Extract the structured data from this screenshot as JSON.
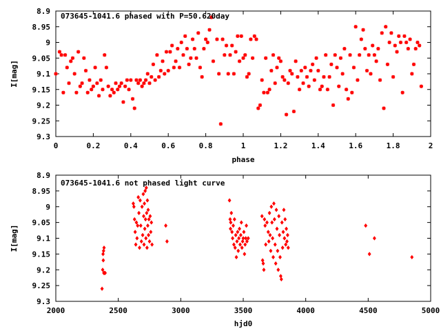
{
  "chart_data": [
    {
      "type": "scatter",
      "title": "073645-1041.6 phased with P=50.620day",
      "xlabel": "phase",
      "ylabel": "I[mag]",
      "xlim": [
        0,
        2
      ],
      "ylim": [
        9.3,
        8.9
      ],
      "y_inverted": true,
      "x_ticks": [
        "0",
        "0.2",
        "0.4",
        "0.6",
        "0.8",
        "1",
        "1.2",
        "1.4",
        "1.6",
        "1.8",
        "2"
      ],
      "y_ticks": [
        "8.9",
        "8.95",
        "9",
        "9.05",
        "9.1",
        "9.15",
        "9.2",
        "9.25",
        "9.3"
      ],
      "marker": "plus-cross",
      "color": "#ff0000",
      "points": [
        [
          0.0,
          9.1
        ],
        [
          0.02,
          9.03
        ],
        [
          0.03,
          9.04
        ],
        [
          0.04,
          9.16
        ],
        [
          0.05,
          9.04
        ],
        [
          0.06,
          9.08
        ],
        [
          0.07,
          9.13
        ],
        [
          0.08,
          9.06
        ],
        [
          0.09,
          9.05
        ],
        [
          0.1,
          9.1
        ],
        [
          0.11,
          9.16
        ],
        [
          0.12,
          9.03
        ],
        [
          0.13,
          9.14
        ],
        [
          0.14,
          9.13
        ],
        [
          0.15,
          9.05
        ],
        [
          0.16,
          9.09
        ],
        [
          0.17,
          9.16
        ],
        [
          0.18,
          9.12
        ],
        [
          0.19,
          9.15
        ],
        [
          0.2,
          9.14
        ],
        [
          0.21,
          9.08
        ],
        [
          0.22,
          9.13
        ],
        [
          0.23,
          9.17
        ],
        [
          0.24,
          9.12
        ],
        [
          0.25,
          9.15
        ],
        [
          0.26,
          9.04
        ],
        [
          0.27,
          9.08
        ],
        [
          0.28,
          9.14
        ],
        [
          0.29,
          9.17
        ],
        [
          0.3,
          9.15
        ],
        [
          0.31,
          9.16
        ],
        [
          0.32,
          9.13
        ],
        [
          0.33,
          9.15
        ],
        [
          0.34,
          9.14
        ],
        [
          0.35,
          9.13
        ],
        [
          0.36,
          9.19
        ],
        [
          0.37,
          9.14
        ],
        [
          0.38,
          9.12
        ],
        [
          0.39,
          9.15
        ],
        [
          0.4,
          9.12
        ],
        [
          0.41,
          9.18
        ],
        [
          0.42,
          9.21
        ],
        [
          0.43,
          9.12
        ],
        [
          0.44,
          9.13
        ],
        [
          0.45,
          9.12
        ],
        [
          0.46,
          9.14
        ],
        [
          0.47,
          9.13
        ],
        [
          0.48,
          9.12
        ],
        [
          0.49,
          9.1
        ],
        [
          0.5,
          9.13
        ],
        [
          0.51,
          9.11
        ],
        [
          0.52,
          9.07
        ],
        [
          0.53,
          9.12
        ],
        [
          0.54,
          9.04
        ],
        [
          0.55,
          9.11
        ],
        [
          0.56,
          9.09
        ],
        [
          0.57,
          9.06
        ],
        [
          0.58,
          9.1
        ],
        [
          0.59,
          9.03
        ],
        [
          0.6,
          9.09
        ],
        [
          0.61,
          9.03
        ],
        [
          0.62,
          9.01
        ],
        [
          0.63,
          9.08
        ],
        [
          0.64,
          9.06
        ],
        [
          0.65,
          9.02
        ],
        [
          0.66,
          9.08
        ],
        [
          0.67,
          9.0
        ],
        [
          0.68,
          9.04
        ],
        [
          0.69,
          8.98
        ],
        [
          0.7,
          9.02
        ],
        [
          0.71,
          9.07
        ],
        [
          0.72,
          9.05
        ],
        [
          0.73,
          8.99
        ],
        [
          0.74,
          9.02
        ],
        [
          0.75,
          9.05
        ],
        [
          0.76,
          8.97
        ],
        [
          0.77,
          9.08
        ],
        [
          0.78,
          9.11
        ],
        [
          0.79,
          9.02
        ],
        [
          0.8,
          8.99
        ],
        [
          0.81,
          9.0
        ],
        [
          0.82,
          8.96
        ],
        [
          0.83,
          8.92
        ],
        [
          0.84,
          9.06
        ],
        [
          0.86,
          8.99
        ],
        [
          0.87,
          9.1
        ],
        [
          0.88,
          9.26
        ],
        [
          0.89,
          8.99
        ],
        [
          0.9,
          9.04
        ],
        [
          0.91,
          9.01
        ],
        [
          0.92,
          9.1
        ],
        [
          0.93,
          9.04
        ],
        [
          0.94,
          9.01
        ],
        [
          0.95,
          9.1
        ],
        [
          0.96,
          9.03
        ],
        [
          0.97,
          8.98
        ],
        [
          0.98,
          9.06
        ],
        [
          0.99,
          8.98
        ],
        [
          1.0,
          9.05
        ],
        [
          1.01,
          9.04
        ],
        [
          1.02,
          9.11
        ],
        [
          1.03,
          9.1
        ],
        [
          1.04,
          8.99
        ],
        [
          1.05,
          9.05
        ],
        [
          1.06,
          8.98
        ],
        [
          1.07,
          8.99
        ],
        [
          1.08,
          9.21
        ],
        [
          1.09,
          9.2
        ],
        [
          1.1,
          9.12
        ],
        [
          1.11,
          9.16
        ],
        [
          1.12,
          9.05
        ],
        [
          1.13,
          9.16
        ],
        [
          1.14,
          9.15
        ],
        [
          1.15,
          9.09
        ],
        [
          1.16,
          9.04
        ],
        [
          1.17,
          9.13
        ],
        [
          1.18,
          9.08
        ],
        [
          1.19,
          9.05
        ],
        [
          1.2,
          9.06
        ],
        [
          1.21,
          9.11
        ],
        [
          1.22,
          9.12
        ],
        [
          1.23,
          9.23
        ],
        [
          1.24,
          9.13
        ],
        [
          1.25,
          9.09
        ],
        [
          1.26,
          9.1
        ],
        [
          1.27,
          9.22
        ],
        [
          1.28,
          9.06
        ],
        [
          1.29,
          9.11
        ],
        [
          1.3,
          9.15
        ],
        [
          1.31,
          9.09
        ],
        [
          1.32,
          9.13
        ],
        [
          1.33,
          9.08
        ],
        [
          1.34,
          9.11
        ],
        [
          1.35,
          9.14
        ],
        [
          1.36,
          9.09
        ],
        [
          1.37,
          9.07
        ],
        [
          1.38,
          9.12
        ],
        [
          1.39,
          9.05
        ],
        [
          1.4,
          9.09
        ],
        [
          1.41,
          9.15
        ],
        [
          1.42,
          9.14
        ],
        [
          1.43,
          9.11
        ],
        [
          1.44,
          9.04
        ],
        [
          1.45,
          9.15
        ],
        [
          1.46,
          9.11
        ],
        [
          1.47,
          9.07
        ],
        [
          1.48,
          9.2
        ],
        [
          1.49,
          9.04
        ],
        [
          1.5,
          9.08
        ],
        [
          1.51,
          9.14
        ],
        [
          1.52,
          9.05
        ],
        [
          1.53,
          9.1
        ],
        [
          1.54,
          9.02
        ],
        [
          1.55,
          9.15
        ],
        [
          1.56,
          9.18
        ],
        [
          1.57,
          9.04
        ],
        [
          1.58,
          9.16
        ],
        [
          1.59,
          9.08
        ],
        [
          1.6,
          8.95
        ],
        [
          1.61,
          9.12
        ],
        [
          1.62,
          9.04
        ],
        [
          1.63,
          8.99
        ],
        [
          1.64,
          8.96
        ],
        [
          1.65,
          9.02
        ],
        [
          1.66,
          9.09
        ],
        [
          1.67,
          9.04
        ],
        [
          1.68,
          9.1
        ],
        [
          1.69,
          9.01
        ],
        [
          1.7,
          9.04
        ],
        [
          1.71,
          9.06
        ],
        [
          1.72,
          9.02
        ],
        [
          1.73,
          9.12
        ],
        [
          1.74,
          8.97
        ],
        [
          1.75,
          9.21
        ],
        [
          1.76,
          8.95
        ],
        [
          1.77,
          9.07
        ],
        [
          1.78,
          9.0
        ],
        [
          1.79,
          8.97
        ],
        [
          1.8,
          9.11
        ],
        [
          1.81,
          9.01
        ],
        [
          1.82,
          9.03
        ],
        [
          1.83,
          8.98
        ],
        [
          1.84,
          9.0
        ],
        [
          1.85,
          9.16
        ],
        [
          1.86,
          8.98
        ],
        [
          1.87,
          9.0
        ],
        [
          1.88,
          9.02
        ],
        [
          1.89,
          8.99
        ],
        [
          1.9,
          9.1
        ],
        [
          1.91,
          9.07
        ],
        [
          1.92,
          9.02
        ],
        [
          1.93,
          9.0
        ],
        [
          1.94,
          9.01
        ],
        [
          1.95,
          9.14
        ]
      ]
    },
    {
      "type": "scatter",
      "title": "073645-1041.6 not phased light curve",
      "xlabel": "hjd0",
      "ylabel": "I[mag]",
      "xlim": [
        2000,
        5000
      ],
      "ylim": [
        9.3,
        8.9
      ],
      "y_inverted": true,
      "x_ticks": [
        "2000",
        "2500",
        "3000",
        "3500",
        "4000",
        "4500",
        "5000"
      ],
      "y_ticks": [
        "8.9",
        "8.95",
        "9",
        "9.05",
        "9.1",
        "9.15",
        "9.2",
        "9.25",
        "9.3"
      ],
      "marker": "diamond",
      "color": "#ff0000",
      "points": [
        [
          2370,
          9.26
        ],
        [
          2375,
          9.2
        ],
        [
          2378,
          9.15
        ],
        [
          2380,
          9.17
        ],
        [
          2382,
          9.14
        ],
        [
          2384,
          9.21
        ],
        [
          2386,
          9.13
        ],
        [
          2388,
          9.21
        ],
        [
          2395,
          9.21
        ],
        [
          2620,
          8.99
        ],
        [
          2625,
          9.0
        ],
        [
          2630,
          9.04
        ],
        [
          2635,
          9.08
        ],
        [
          2640,
          9.12
        ],
        [
          2645,
          9.05
        ],
        [
          2650,
          9.1
        ],
        [
          2655,
          9.06
        ],
        [
          2660,
          8.97
        ],
        [
          2665,
          9.02
        ],
        [
          2670,
          9.13
        ],
        [
          2675,
          8.98
        ],
        [
          2680,
          9.06
        ],
        [
          2685,
          9.11
        ],
        [
          2690,
          9.0
        ],
        [
          2695,
          9.09
        ],
        [
          2700,
          8.96
        ],
        [
          2703,
          9.03
        ],
        [
          2706,
          9.12
        ],
        [
          2709,
          8.99
        ],
        [
          2712,
          9.07
        ],
        [
          2715,
          8.95
        ],
        [
          2718,
          9.04
        ],
        [
          2721,
          9.1
        ],
        [
          2724,
          8.94
        ],
        [
          2727,
          9.02
        ],
        [
          2730,
          9.13
        ],
        [
          2733,
          8.98
        ],
        [
          2736,
          9.06
        ],
        [
          2739,
          9.01
        ],
        [
          2742,
          9.09
        ],
        [
          2745,
          9.04
        ],
        [
          2750,
          9.11
        ],
        [
          2755,
          9.03
        ],
        [
          2760,
          9.08
        ],
        [
          2765,
          9.05
        ],
        [
          2770,
          9.12
        ],
        [
          2880,
          9.06
        ],
        [
          2890,
          9.11
        ],
        [
          3390,
          8.98
        ],
        [
          3395,
          9.04
        ],
        [
          3398,
          9.07
        ],
        [
          3400,
          9.05
        ],
        [
          3405,
          9.02
        ],
        [
          3410,
          9.08
        ],
        [
          3415,
          9.1
        ],
        [
          3420,
          9.06
        ],
        [
          3425,
          9.12
        ],
        [
          3430,
          9.04
        ],
        [
          3435,
          9.13
        ],
        [
          3440,
          9.09
        ],
        [
          3445,
          9.16
        ],
        [
          3450,
          9.11
        ],
        [
          3455,
          9.08
        ],
        [
          3460,
          9.14
        ],
        [
          3465,
          9.1
        ],
        [
          3470,
          9.07
        ],
        [
          3475,
          9.12
        ],
        [
          3480,
          9.09
        ],
        [
          3485,
          9.05
        ],
        [
          3490,
          9.13
        ],
        [
          3495,
          9.11
        ],
        [
          3500,
          9.1
        ],
        [
          3505,
          9.08
        ],
        [
          3510,
          9.15
        ],
        [
          3515,
          9.12
        ],
        [
          3520,
          9.1
        ],
        [
          3525,
          9.06
        ],
        [
          3530,
          9.11
        ],
        [
          3540,
          9.1
        ],
        [
          3650,
          9.03
        ],
        [
          3655,
          9.17
        ],
        [
          3660,
          9.18
        ],
        [
          3665,
          9.2
        ],
        [
          3670,
          9.04
        ],
        [
          3675,
          9.06
        ],
        [
          3680,
          9.12
        ],
        [
          3690,
          9.05
        ],
        [
          3700,
          9.08
        ],
        [
          3705,
          9.11
        ],
        [
          3710,
          9.02
        ],
        [
          3715,
          9.09
        ],
        [
          3720,
          9.14
        ],
        [
          3725,
          9.0
        ],
        [
          3730,
          9.05
        ],
        [
          3735,
          9.1
        ],
        [
          3740,
          9.16
        ],
        [
          3745,
          8.99
        ],
        [
          3750,
          9.04
        ],
        [
          3755,
          9.12
        ],
        [
          3760,
          9.18
        ],
        [
          3765,
          9.01
        ],
        [
          3770,
          9.07
        ],
        [
          3775,
          9.14
        ],
        [
          3780,
          9.2
        ],
        [
          3785,
          9.03
        ],
        [
          3790,
          9.09
        ],
        [
          3795,
          9.16
        ],
        [
          3800,
          9.22
        ],
        [
          3805,
          9.23
        ],
        [
          3810,
          9.05
        ],
        [
          3815,
          9.13
        ],
        [
          3820,
          9.08
        ],
        [
          3825,
          9.01
        ],
        [
          3830,
          9.1
        ],
        [
          3835,
          9.04
        ],
        [
          3840,
          9.12
        ],
        [
          3845,
          9.07
        ],
        [
          3850,
          9.11
        ],
        [
          3855,
          9.09
        ],
        [
          3860,
          9.13
        ],
        [
          4480,
          9.06
        ],
        [
          4510,
          9.15
        ],
        [
          4550,
          9.1
        ],
        [
          4850,
          9.16
        ]
      ]
    }
  ]
}
